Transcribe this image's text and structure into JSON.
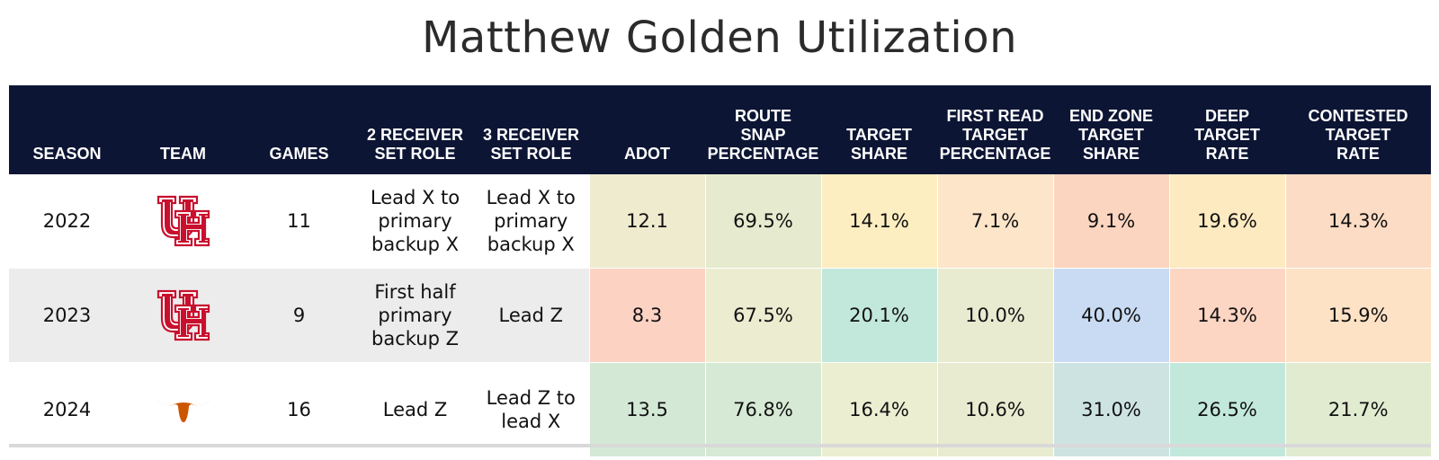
{
  "title": "Matthew Golden Utilization",
  "columns": [
    "SEASON",
    "TEAM",
    "GAMES",
    "2 RECEIVER\nSET ROLE",
    "3 RECEIVER\nSET ROLE",
    "ADOT",
    "ROUTE\nSNAP\nPERCENTAGE",
    "TARGET\nSHARE",
    "FIRST READ\nTARGET\nPERCENTAGE",
    "END ZONE\nTARGET\nSHARE",
    "DEEP\nTARGET\nRATE",
    "CONTESTED\nTARGET\nRATE"
  ],
  "rows": [
    {
      "season": "2022",
      "team_icon": "houston-uh-logo-icon",
      "games": "11",
      "role2": "Lead X to primary backup X",
      "role3": "Lead X to primary backup X",
      "metrics": [
        "12.1",
        "69.5%",
        "14.1%",
        "7.1%",
        "9.1%",
        "19.6%",
        "14.3%"
      ],
      "colors": [
        "#eeebcf",
        "#e6ebcf",
        "#fdeec1",
        "#fde5c9",
        "#fcd5c0",
        "#fdeac1",
        "#fcdcc4"
      ]
    },
    {
      "season": "2023",
      "team_icon": "houston-uh-logo-icon",
      "games": "9",
      "role2": "First half primary backup Z",
      "role3": "Lead Z",
      "metrics": [
        "8.3",
        "67.5%",
        "20.1%",
        "10.0%",
        "40.0%",
        "14.3%",
        "15.9%"
      ],
      "colors": [
        "#fcd2c3",
        "#ebecd0",
        "#c2e8dc",
        "#e8ebd0",
        "#c9dbf3",
        "#fcd6c3",
        "#fde2c6"
      ]
    },
    {
      "season": "2024",
      "team_icon": "texas-longhorn-logo-icon",
      "games": "16",
      "role2": "Lead Z",
      "role3": "Lead Z to lead X",
      "metrics": [
        "13.5",
        "76.8%",
        "16.4%",
        "10.6%",
        "31.0%",
        "26.5%",
        "21.7%"
      ],
      "colors": [
        "#d4e8d6",
        "#d6e9d4",
        "#eceed2",
        "#e8ebd0",
        "#cde3e2",
        "#c2e8dc",
        "#e1ebd0"
      ]
    }
  ],
  "chart_data": {
    "type": "table",
    "title": "Matthew Golden Utilization",
    "headers": [
      "SEASON",
      "TEAM",
      "GAMES",
      "2 RECEIVER SET ROLE",
      "3 RECEIVER SET ROLE",
      "ADOT",
      "ROUTE SNAP PERCENTAGE",
      "TARGET SHARE",
      "FIRST READ TARGET PERCENTAGE",
      "END ZONE TARGET SHARE",
      "DEEP TARGET RATE",
      "CONTESTED TARGET RATE"
    ],
    "rows": [
      [
        "2022",
        "Houston",
        "11",
        "Lead X to primary backup X",
        "Lead X to primary backup X",
        "12.1",
        "69.5%",
        "14.1%",
        "7.1%",
        "9.1%",
        "19.6%",
        "14.3%"
      ],
      [
        "2023",
        "Houston",
        "9",
        "First half primary backup Z",
        "Lead Z",
        "8.3",
        "67.5%",
        "20.1%",
        "10.0%",
        "40.0%",
        "14.3%",
        "15.9%"
      ],
      [
        "2024",
        "Texas",
        "16",
        "Lead Z",
        "Lead Z to lead X",
        "13.5",
        "76.8%",
        "16.4%",
        "10.6%",
        "31.0%",
        "26.5%",
        "21.7%"
      ]
    ]
  }
}
